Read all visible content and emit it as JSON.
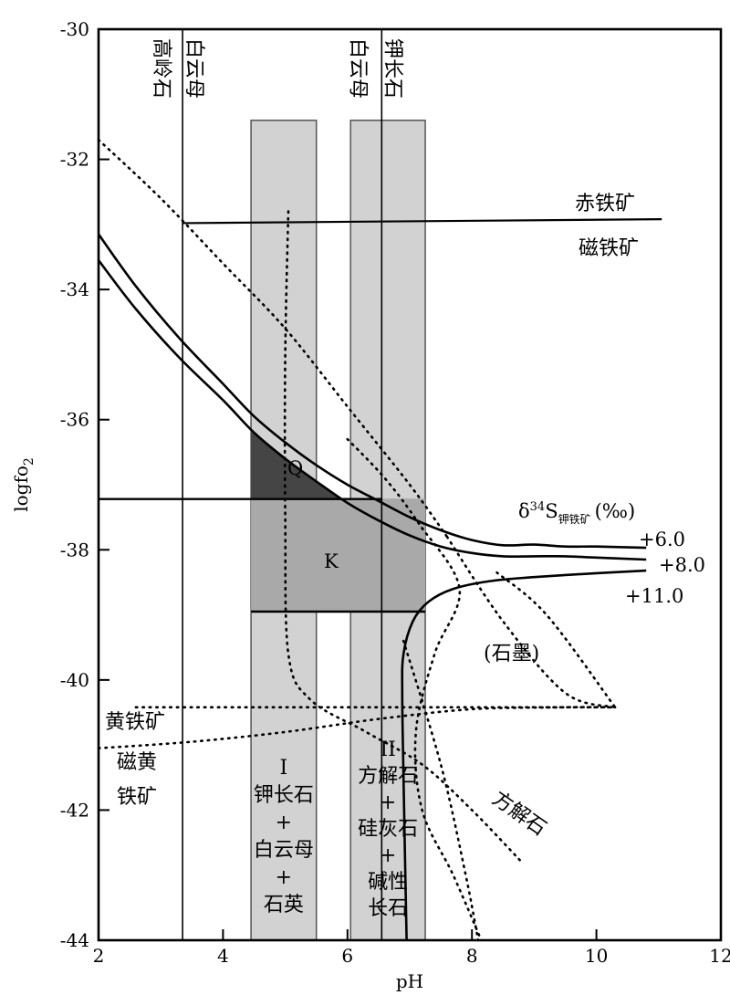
{
  "chart_data": {
    "type": "line",
    "title": "",
    "xlabel": "pH",
    "ylabel": "logfo",
    "ylabel_sub": "2",
    "xlim": [
      2,
      12
    ],
    "ylim": [
      -44,
      -30
    ],
    "x_ticks": [
      2,
      4,
      6,
      8,
      10,
      12
    ],
    "y_ticks": [
      -30,
      -32,
      -34,
      -36,
      -38,
      -40,
      -42,
      -44
    ],
    "x_tick_labels": [
      "2",
      "4",
      "6",
      "8",
      "10",
      "12"
    ],
    "y_tick_labels": [
      "-30",
      "-32",
      "-34",
      "-36",
      "-38",
      "-40",
      "-42",
      "-44"
    ],
    "vertical_boundaries": [
      {
        "ph": 3.35,
        "left_label": "高岭石",
        "right_label": "白云母"
      },
      {
        "ph": 6.55,
        "left_label": "白云母",
        "right_label": "钾长石"
      }
    ],
    "hematite_magnetite_boundary": {
      "upper_label": "赤铁矿",
      "lower_label": "磁铁矿",
      "points": [
        [
          3.35,
          -32.98
        ],
        [
          11.05,
          -32.92
        ]
      ]
    },
    "isotope_curves": {
      "legend_prefix": "δ",
      "legend_sup": "34",
      "legend_s": "S",
      "legend_sub": "钾铁矿",
      "legend_unit": "(‰)",
      "series": [
        {
          "name": "+6.0",
          "label": "+6.0",
          "points": [
            [
              2.0,
              -33.15
            ],
            [
              2.6,
              -33.95
            ],
            [
              3.3,
              -34.75
            ],
            [
              4.0,
              -35.45
            ],
            [
              4.5,
              -35.95
            ],
            [
              5.0,
              -36.35
            ],
            [
              5.5,
              -36.7
            ],
            [
              6.0,
              -37.0
            ],
            [
              6.5,
              -37.25
            ],
            [
              7.0,
              -37.5
            ],
            [
              7.5,
              -37.7
            ],
            [
              8.0,
              -37.85
            ],
            [
              8.5,
              -37.93
            ],
            [
              9.0,
              -37.92
            ],
            [
              9.5,
              -37.95
            ],
            [
              10.0,
              -37.95
            ],
            [
              10.8,
              -37.97
            ]
          ]
        },
        {
          "name": "+8.0",
          "label": "+8.0",
          "points": [
            [
              2.0,
              -33.55
            ],
            [
              2.6,
              -34.3
            ],
            [
              3.3,
              -35.05
            ],
            [
              4.0,
              -35.7
            ],
            [
              4.5,
              -36.2
            ],
            [
              5.0,
              -36.6
            ],
            [
              5.5,
              -36.95
            ],
            [
              6.0,
              -37.28
            ],
            [
              6.5,
              -37.55
            ],
            [
              7.0,
              -37.78
            ],
            [
              7.5,
              -37.95
            ],
            [
              8.0,
              -38.05
            ],
            [
              8.5,
              -38.1
            ],
            [
              9.0,
              -38.1
            ],
            [
              9.5,
              -38.1
            ],
            [
              10.0,
              -38.12
            ],
            [
              10.8,
              -38.15
            ]
          ]
        },
        {
          "name": "+11.0",
          "label": "+11.0",
          "points": [
            [
              6.95,
              -44.0
            ],
            [
              6.9,
              -41.5
            ],
            [
              6.88,
              -40.2
            ],
            [
              6.9,
              -39.6
            ],
            [
              7.05,
              -39.1
            ],
            [
              7.3,
              -38.8
            ],
            [
              7.7,
              -38.6
            ],
            [
              8.3,
              -38.48
            ],
            [
              9.0,
              -38.42
            ],
            [
              10.0,
              -38.36
            ],
            [
              10.8,
              -38.32
            ]
          ]
        }
      ]
    },
    "shaded_bands": [
      {
        "name": "I",
        "ph_range": [
          4.45,
          5.5
        ],
        "top": -31.4,
        "labels": [
          "I",
          "钾长石",
          "+",
          "白云母",
          "+",
          "石英"
        ]
      },
      {
        "name": "II",
        "ph_range": [
          6.05,
          7.25
        ],
        "top": -31.4,
        "labels": [
          "II",
          "方解石",
          "+",
          "硅灰石",
          "+",
          "碱性",
          "长石"
        ]
      }
    ],
    "regions": [
      {
        "name": "Q",
        "label": "Q",
        "ph_range": [
          4.45,
          7.25
        ],
        "bottom": -37.22
      },
      {
        "name": "K",
        "label": "K",
        "ph_range": [
          4.45,
          7.25
        ],
        "y_range": [
          -38.95,
          -37.22
        ]
      }
    ],
    "horizontal_lines": [
      {
        "y": -37.22,
        "ph_range": [
          2.0,
          6.55
        ]
      },
      {
        "y": -38.95,
        "ph_range": [
          4.45,
          7.25
        ]
      }
    ],
    "dotted_boundaries": [
      {
        "name": "pyrite-pyrrhotite-upper",
        "points": [
          [
            2.6,
            -40.42
          ],
          [
            10.3,
            -40.42
          ]
        ]
      },
      {
        "name": "pyrite-pyrrhotite-lower",
        "points": [
          [
            2.0,
            -41.05
          ],
          [
            3.5,
            -40.95
          ],
          [
            5.0,
            -40.8
          ],
          [
            6.5,
            -40.6
          ],
          [
            8.0,
            -40.45
          ],
          [
            9.5,
            -40.42
          ],
          [
            10.3,
            -40.42
          ]
        ]
      },
      {
        "name": "graphite-upper",
        "points": [
          [
            2.0,
            -31.7
          ],
          [
            3.0,
            -32.6
          ],
          [
            4.0,
            -33.6
          ],
          [
            5.0,
            -34.6
          ],
          [
            6.0,
            -35.8
          ],
          [
            7.0,
            -37.0
          ],
          [
            7.6,
            -37.8
          ]
        ]
      },
      {
        "name": "graphite-diagonal",
        "points": [
          [
            7.6,
            -37.8
          ],
          [
            8.5,
            -39.1
          ],
          [
            9.5,
            -40.2
          ],
          [
            10.3,
            -40.42
          ]
        ]
      },
      {
        "name": "calcite-boundary",
        "points": [
          [
            5.05,
            -32.8
          ],
          [
            5.0,
            -35.0
          ],
          [
            5.0,
            -37.5
          ],
          [
            5.05,
            -39.6
          ],
          [
            5.4,
            -40.3
          ],
          [
            6.3,
            -40.8
          ],
          [
            7.2,
            -41.3
          ],
          [
            8.0,
            -42.0
          ],
          [
            8.8,
            -42.8
          ]
        ]
      },
      {
        "name": "graphite-left",
        "points": [
          [
            6.0,
            -36.3
          ],
          [
            6.6,
            -36.9
          ],
          [
            7.15,
            -37.6
          ],
          [
            7.8,
            -38.6
          ],
          [
            7.4,
            -39.6
          ],
          [
            7.1,
            -40.8
          ],
          [
            7.2,
            -42.0
          ],
          [
            7.7,
            -43.0
          ],
          [
            8.15,
            -44.0
          ]
        ]
      },
      {
        "name": "graphite-right",
        "points": [
          [
            8.4,
            -38.35
          ],
          [
            9.2,
            -39.0
          ],
          [
            10.3,
            -40.42
          ]
        ]
      },
      {
        "name": "calcite-lower",
        "points": [
          [
            6.9,
            -39.4
          ],
          [
            7.5,
            -41.3
          ],
          [
            7.9,
            -43.0
          ],
          [
            8.1,
            -44.0
          ]
        ]
      }
    ],
    "annotations": [
      {
        "text": "黄铁矿"
      },
      {
        "text": "磁黄"
      },
      {
        "text": "铁矿"
      },
      {
        "text": "(石墨)"
      },
      {
        "text": "方解石"
      }
    ],
    "grid": false
  }
}
